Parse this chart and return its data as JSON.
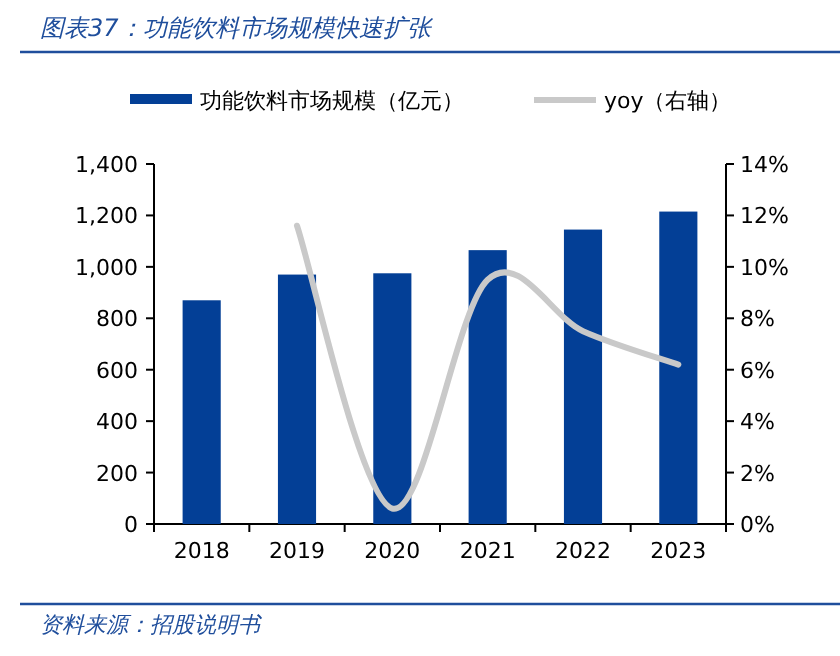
{
  "chart_data": {
    "type": "bar",
    "title": "图表37：功能饮料市场规模快速扩张",
    "categories": [
      "2018",
      "2019",
      "2020",
      "2021",
      "2022",
      "2023"
    ],
    "series": [
      {
        "name": "功能饮料市场规模（亿元）",
        "color": "#033f96",
        "values": [
          870,
          970,
          975,
          1065,
          1145,
          1215
        ]
      },
      {
        "name": "yoy（右轴）",
        "type": "line",
        "axis": "y2",
        "color": "#c9c9c9",
        "values": [
          null,
          11.6,
          0.6,
          9.5,
          7.5,
          6.2
        ]
      }
    ],
    "ylim": [
      0,
      1400
    ],
    "yticks": [
      {
        "value": 0,
        "label": "0"
      },
      {
        "value": 200,
        "label": "200"
      },
      {
        "value": 400,
        "label": "400"
      },
      {
        "value": 600,
        "label": "600"
      },
      {
        "value": 800,
        "label": "800"
      },
      {
        "value": 1000,
        "label": "1,000"
      },
      {
        "value": 1200,
        "label": "1,200"
      },
      {
        "value": 1400,
        "label": "1,400"
      }
    ],
    "y2lim": [
      0,
      14
    ],
    "y2ticks": [
      {
        "value": 0,
        "label": "0%"
      },
      {
        "value": 2,
        "label": "2%"
      },
      {
        "value": 4,
        "label": "4%"
      },
      {
        "value": 6,
        "label": "6%"
      },
      {
        "value": 8,
        "label": "8%"
      },
      {
        "value": 10,
        "label": "10%"
      },
      {
        "value": 12,
        "label": "12%"
      },
      {
        "value": 14,
        "label": "14%"
      }
    ],
    "legend": "top",
    "marker": "none",
    "annotations": [
      "资料来源：招股说明书"
    ]
  }
}
